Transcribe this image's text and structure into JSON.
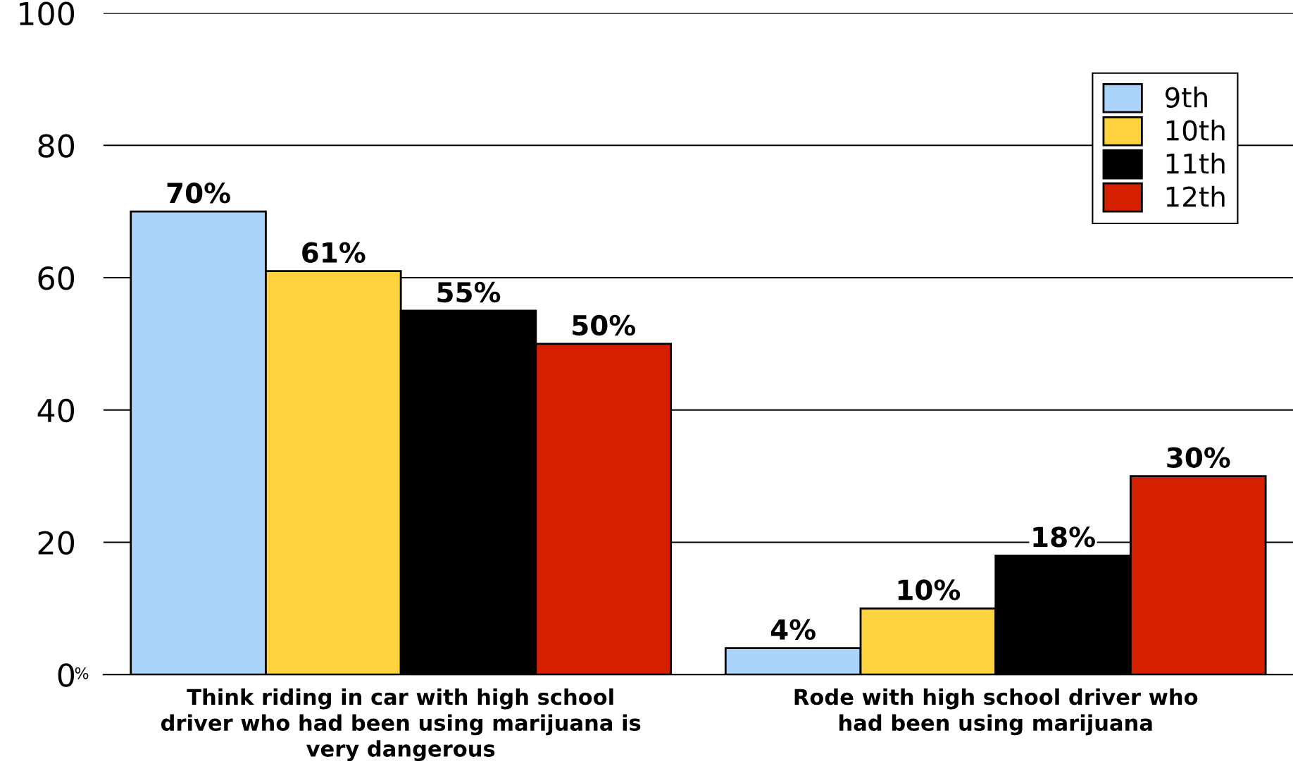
{
  "chart_data": {
    "type": "bar",
    "categories": [
      "Think riding in car with high school\ndriver who had been using marijuana is\nvery dangerous",
      "Rode with high school driver who\nhad been using marijuana"
    ],
    "series": [
      {
        "name": "9th",
        "color": "#aad4fb",
        "values": [
          70,
          4
        ],
        "value_labels": [
          "70%",
          "4%"
        ]
      },
      {
        "name": "10th",
        "color": "#fcd33f",
        "values": [
          61,
          10
        ],
        "value_labels": [
          "61%",
          "10%"
        ]
      },
      {
        "name": "11th",
        "color": "#000000",
        "values": [
          55,
          18
        ],
        "value_labels": [
          "55%",
          "18%"
        ]
      },
      {
        "name": "12th",
        "color": "#d42000",
        "values": [
          50,
          30
        ],
        "value_labels": [
          "50%",
          "30%"
        ]
      }
    ],
    "ylabel": "%",
    "ylim": [
      0,
      100
    ],
    "yticks": [
      0,
      20,
      40,
      60,
      80,
      100
    ],
    "grid": "y",
    "legend": "top right"
  }
}
